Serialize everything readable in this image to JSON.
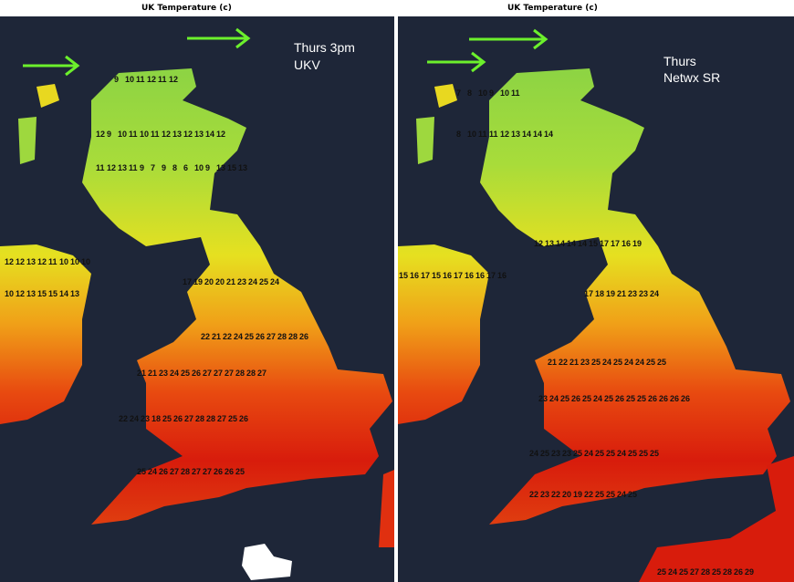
{
  "panels": [
    {
      "title": "UK Temperature (c)",
      "labels": [
        "Thurs 3pm",
        "UKV"
      ],
      "grid_rows": [
        [
          9,
          10,
          11,
          12,
          11,
          12
        ],
        [
          12,
          9,
          10,
          11,
          10,
          11,
          12,
          13,
          12,
          13,
          14,
          12
        ],
        [
          11,
          12,
          13,
          11,
          9,
          7,
          9,
          8,
          6,
          10,
          9,
          13,
          15,
          13
        ],
        [
          12,
          12,
          13,
          12,
          11,
          10,
          10,
          10
        ],
        [
          10,
          12,
          13,
          15,
          15,
          14,
          13
        ],
        [
          17,
          19,
          20,
          20,
          21,
          23,
          24,
          25,
          24
        ],
        [
          22,
          21,
          22,
          24,
          25,
          26,
          27,
          28,
          28,
          26
        ],
        [
          21,
          21,
          23,
          24,
          25,
          26,
          27,
          27,
          27,
          28,
          28,
          27
        ],
        [
          22,
          24,
          23,
          18,
          25,
          26,
          27,
          28,
          28,
          27,
          25,
          26
        ],
        [
          25,
          24,
          26,
          27,
          28,
          27,
          27,
          26,
          26,
          25
        ]
      ]
    },
    {
      "title": "UK Temperature (c)",
      "labels": [
        "Thurs",
        "Netwx SR"
      ],
      "grid_rows": [
        [
          7,
          8,
          10,
          9,
          10,
          11
        ],
        [
          8,
          10,
          11,
          11,
          12,
          13,
          14,
          14,
          14
        ],
        [
          12,
          13,
          14,
          14,
          14,
          15,
          17,
          17,
          16,
          19
        ],
        [
          15,
          16,
          17,
          15,
          16,
          17,
          16,
          16,
          17,
          16
        ],
        [
          17,
          18,
          19,
          21,
          23,
          23,
          24
        ],
        [
          21,
          22,
          21,
          23,
          25,
          24,
          25,
          24,
          24,
          25,
          25
        ],
        [
          23,
          24,
          25,
          26,
          25,
          24,
          25,
          26,
          25,
          25,
          26,
          26,
          26,
          26
        ],
        [
          24,
          25,
          23,
          23,
          25,
          24,
          25,
          25,
          24,
          25,
          25,
          25
        ],
        [
          22,
          23,
          22,
          20,
          19,
          22,
          25,
          25,
          24,
          25
        ],
        [
          25,
          24,
          25,
          27,
          28,
          25,
          28,
          26,
          29
        ]
      ]
    }
  ]
}
